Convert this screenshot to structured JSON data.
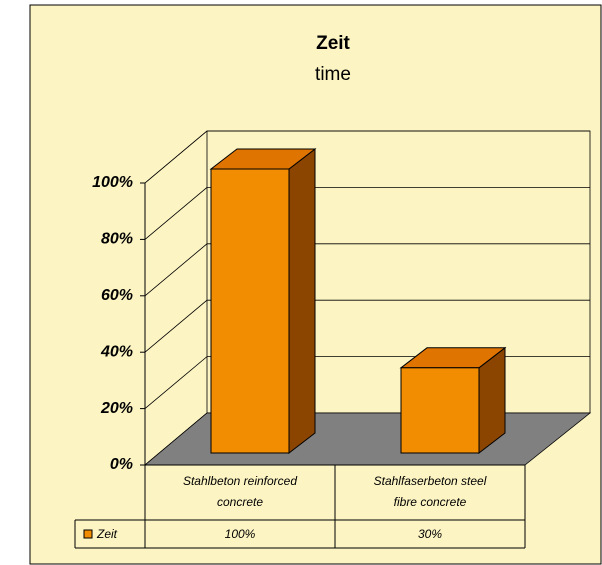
{
  "chart_data": {
    "type": "bar3d",
    "title": "Zeit",
    "subtitle": "time",
    "categories": [
      "Stahlbeton reinforced concrete",
      "Stahlfaserbeton steel fibre concrete"
    ],
    "series": [
      {
        "name": "Zeit",
        "color": "#f28c00",
        "values": [
          100,
          30
        ],
        "value_labels": [
          "100%",
          "30%"
        ]
      }
    ],
    "ylim": [
      0,
      100
    ],
    "yticks": [
      {
        "value": 0,
        "label": "0%"
      },
      {
        "value": 20,
        "label": "20%"
      },
      {
        "value": 40,
        "label": "40%"
      },
      {
        "value": 60,
        "label": "60%"
      },
      {
        "value": 80,
        "label": "80%"
      },
      {
        "value": 100,
        "label": "100%"
      }
    ],
    "grid": true
  }
}
